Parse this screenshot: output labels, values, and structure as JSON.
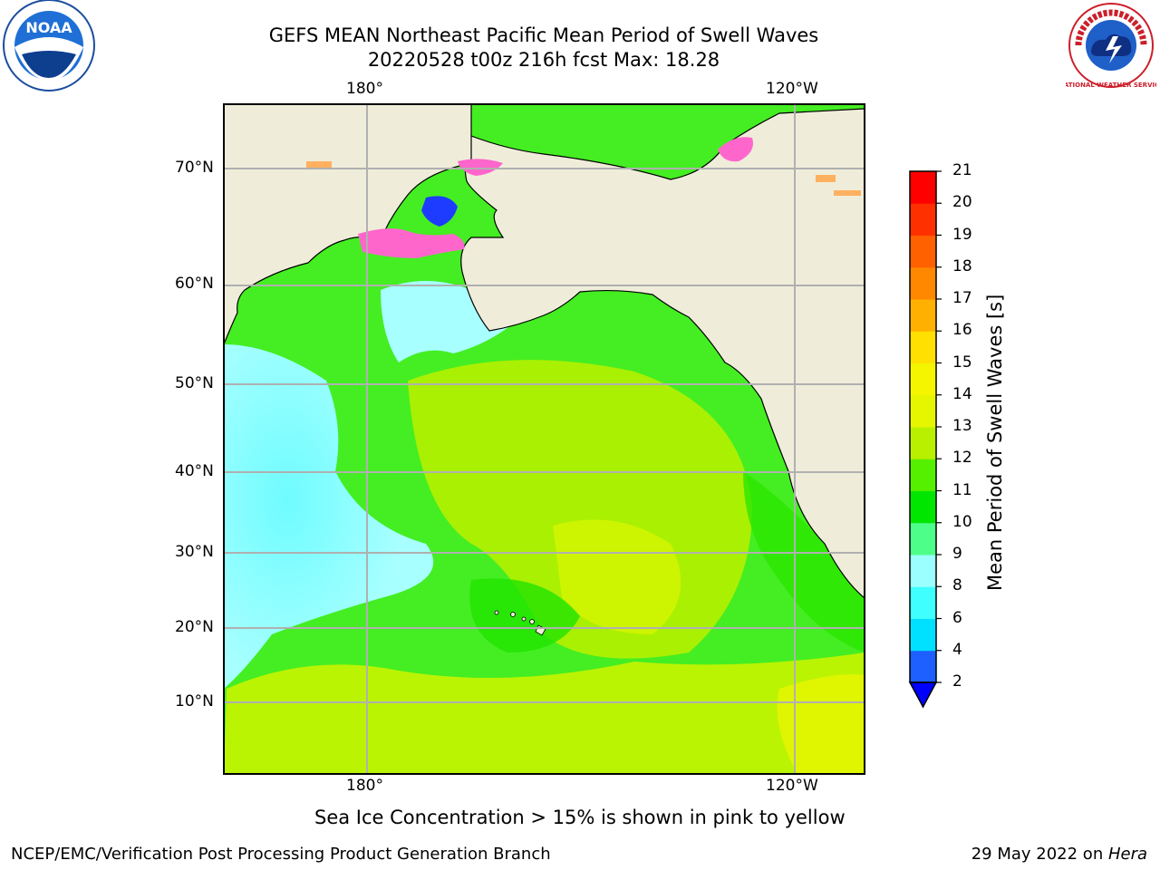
{
  "header": {
    "title_line1": "GEFS MEAN Northeast Pacific Mean Period of Swell Waves",
    "title_line2": "20220528 t00z 216h fcst   Max: 18.28"
  },
  "axes": {
    "lon_top": [
      "180°",
      "120°W"
    ],
    "lon_bottom": [
      "180°",
      "120°W"
    ],
    "lat": [
      "70°N",
      "60°N",
      "50°N",
      "40°N",
      "30°N",
      "20°N",
      "10°N"
    ]
  },
  "colorbar": {
    "title": "Mean Period of Swell Waves [s]",
    "ticks": [
      "2",
      "4",
      "6",
      "8",
      "9",
      "10",
      "11",
      "12",
      "13",
      "14",
      "15",
      "16",
      "17",
      "18",
      "19",
      "20",
      "21"
    ],
    "colors": [
      "#1e5fff",
      "#00e0ff",
      "#40ffff",
      "#9cffff",
      "#4dff88",
      "#00e600",
      "#55f000",
      "#b8f000",
      "#e6f500",
      "#f5f500",
      "#ffe000",
      "#ffb000",
      "#ff8800",
      "#ff6000",
      "#ff3000",
      "#ff0000"
    ],
    "extend_color": "#0000ff"
  },
  "colors": {
    "land": "#efedda",
    "grid": "#b0b0b0",
    "sea_ice": "#ff66cc"
  },
  "note": "Sea Ice Concentration > 15% is shown in pink to yellow",
  "footer": {
    "left": "NCEP/EMC/Verification Post Processing Product Generation Branch",
    "right_date": "29 May 2022 on ",
    "right_host": "Hera"
  },
  "logos": {
    "noaa": "noaa-logo",
    "noaa_text": "NOAA",
    "nws": "nws-logo",
    "nws_text": "NATIONAL WEATHER SERVICE"
  }
}
